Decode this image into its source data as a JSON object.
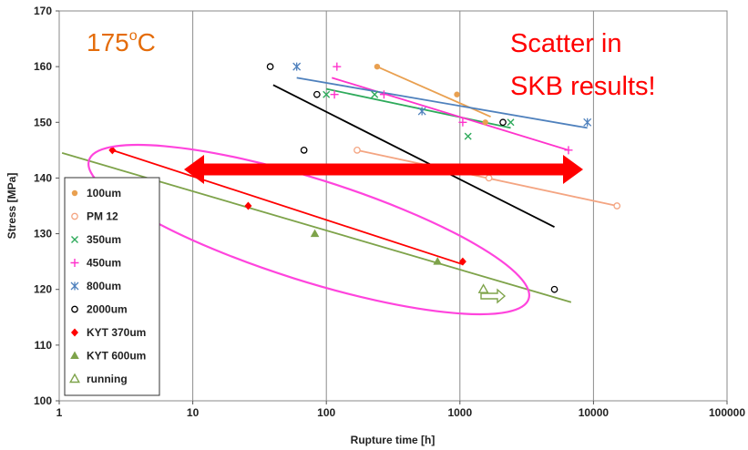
{
  "chart_data": {
    "type": "scatter",
    "title": "",
    "xlabel": "Rupture time [h]",
    "ylabel": "Stress [MPa]",
    "x_scale": "log",
    "xlim": [
      1,
      100000
    ],
    "ylim": [
      100,
      170
    ],
    "x_ticks": [
      "1",
      "10",
      "100",
      "1000",
      "10000",
      "100000"
    ],
    "x_tick_values": [
      1,
      10,
      100,
      1000,
      10000,
      100000
    ],
    "y_ticks": [
      "100",
      "110",
      "120",
      "130",
      "140",
      "150",
      "160",
      "170"
    ],
    "y_tick_values": [
      100,
      110,
      120,
      130,
      140,
      150,
      160,
      170
    ],
    "grid": "vertical",
    "legend_position": "left",
    "annotations": {
      "temperature": "175",
      "temperature_sup": "o",
      "temperature_unit": "C",
      "note_line1": "Scatter in",
      "note_line2": "SKB results!"
    },
    "series": [
      {
        "name": "100um",
        "marker": "filled-circle",
        "color": "#E9A050",
        "points": [
          [
            240,
            160
          ],
          [
            950,
            155
          ],
          [
            1550,
            150
          ]
        ],
        "trend": [
          [
            240,
            160
          ],
          [
            1700,
            151
          ]
        ]
      },
      {
        "name": "PM 12",
        "marker": "open-circle",
        "color": "#F4A582",
        "points": [
          [
            170,
            145
          ],
          [
            1650,
            140
          ],
          [
            15000,
            135
          ]
        ],
        "trend": [
          [
            170,
            145
          ],
          [
            15000,
            135
          ]
        ]
      },
      {
        "name": "350um",
        "marker": "x",
        "color": "#2EAA5B",
        "points": [
          [
            100,
            155
          ],
          [
            230,
            155
          ],
          [
            1150,
            147.5
          ],
          [
            2400,
            150
          ]
        ],
        "trend": [
          [
            100,
            156
          ],
          [
            2400,
            149
          ]
        ]
      },
      {
        "name": "450um",
        "marker": "plus",
        "color": "#FF33CC",
        "points": [
          [
            120,
            160
          ],
          [
            115,
            155
          ],
          [
            270,
            155
          ],
          [
            1050,
            150
          ],
          [
            6500,
            145
          ]
        ],
        "trend": [
          [
            110,
            158
          ],
          [
            6500,
            145
          ]
        ]
      },
      {
        "name": "800um",
        "marker": "asterisk",
        "color": "#4F81BD",
        "points": [
          [
            60,
            160
          ],
          [
            520,
            152
          ],
          [
            9000,
            150
          ]
        ],
        "trend": [
          [
            60,
            158
          ],
          [
            9000,
            149
          ]
        ]
      },
      {
        "name": "2000um",
        "marker": "open-circle",
        "color": "#000000",
        "points": [
          [
            38,
            160
          ],
          [
            85,
            155
          ],
          [
            68,
            145
          ],
          [
            2100,
            150
          ],
          [
            5100,
            120
          ]
        ],
        "trend": [
          [
            40,
            156.7
          ],
          [
            5100,
            131.2
          ]
        ]
      },
      {
        "name": "KYT 370um",
        "marker": "filled-diamond",
        "color": "#FF0000",
        "points": [
          [
            2.5,
            145
          ],
          [
            26,
            135
          ],
          [
            1050,
            125
          ]
        ],
        "trend": [
          [
            2.5,
            145
          ],
          [
            1050,
            124.5
          ]
        ]
      },
      {
        "name": "KYT 600um",
        "marker": "filled-triangle",
        "color": "#7EA34A",
        "points": [
          [
            82,
            130
          ],
          [
            680,
            125
          ]
        ],
        "trend": [
          [
            1.05,
            144.5
          ],
          [
            6800,
            117.7
          ]
        ]
      },
      {
        "name": "running",
        "marker": "open-triangle",
        "color": "#7EA34A",
        "points": [
          [
            1500,
            120
          ]
        ]
      }
    ]
  }
}
